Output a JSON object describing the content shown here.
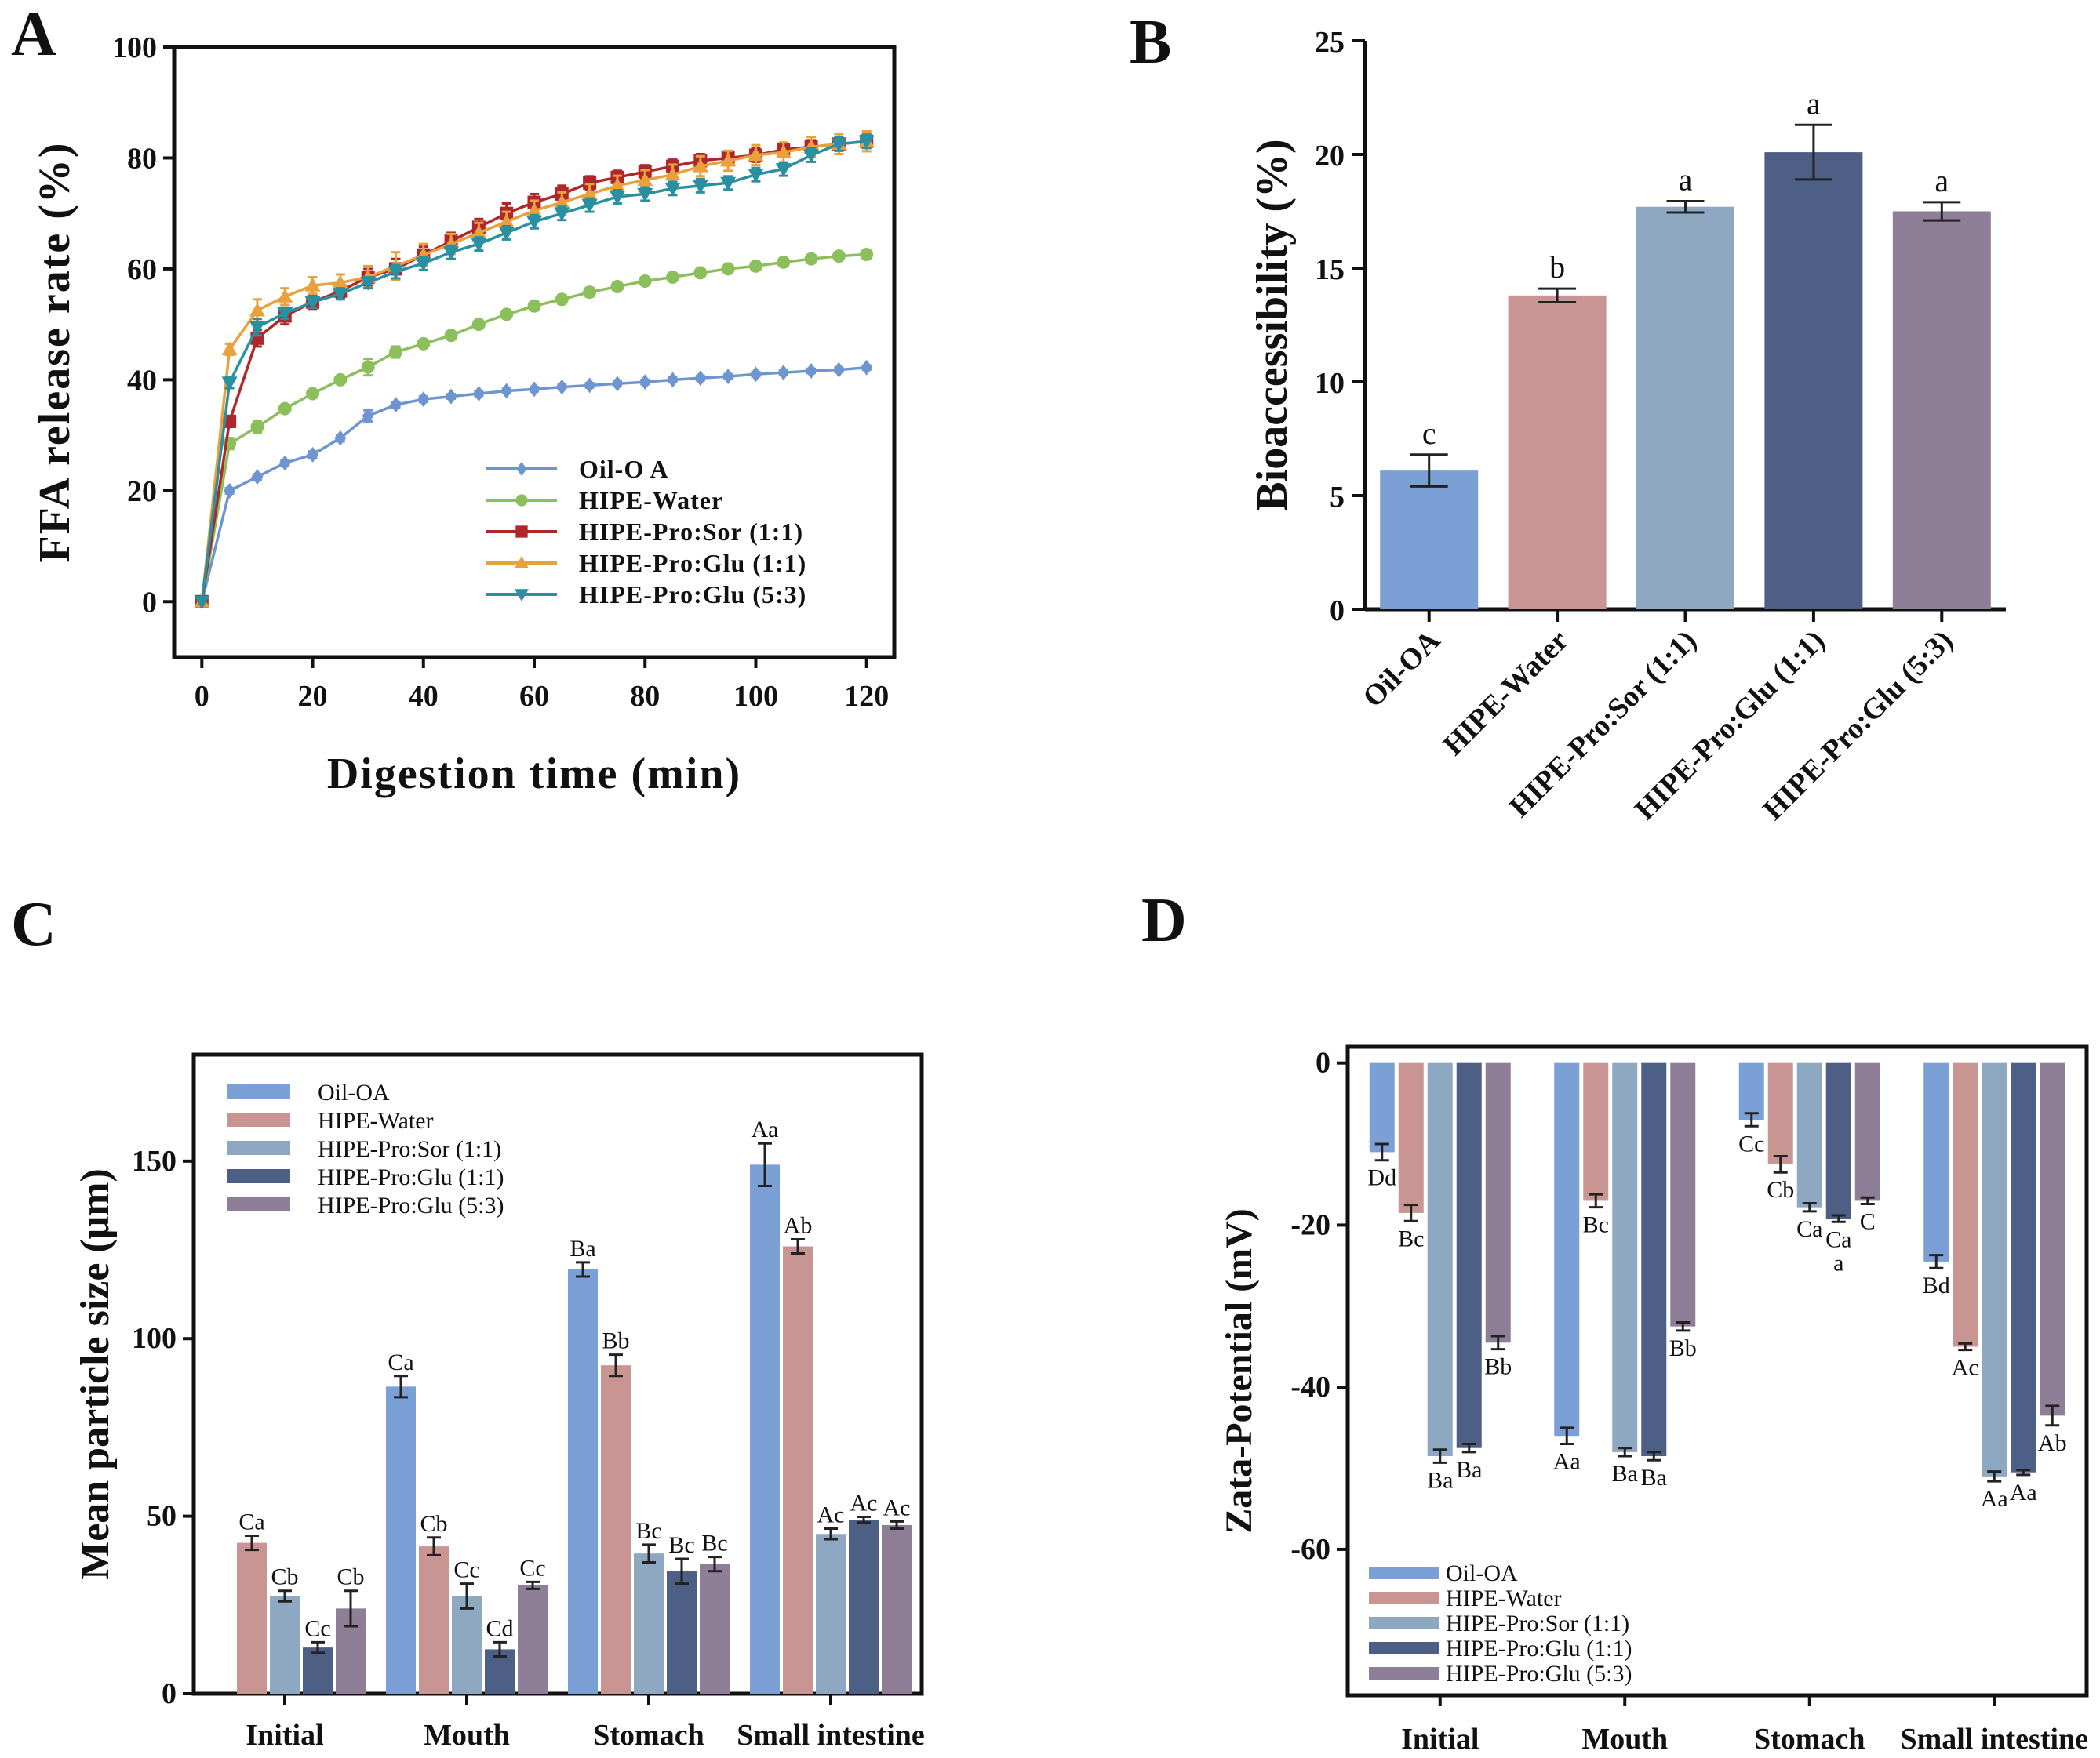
{
  "series_names": [
    "Oil-OA",
    "HIPE-Water",
    "HIPE-Pro:Sor (1:1)",
    "HIPE-Pro:Glu (1:1)",
    "HIPE-Pro:Glu (5:3)"
  ],
  "colors": [
    "#7aa0d6",
    "#c99592",
    "#8ea8c2",
    "#4e5f86",
    "#8e7e98"
  ],
  "line_colors": [
    "#6f95d0",
    "#8cbf5c",
    "#b0272b",
    "#e8a13d",
    "#2a8fa0"
  ],
  "chart_data": [
    {
      "panel": "A",
      "type": "line",
      "xlabel": "Digestion time (min)",
      "ylabel": "FFA release rate  (%)",
      "xlim": [
        -5,
        125
      ],
      "ylim": [
        -10,
        100
      ],
      "xticks": [
        "0",
        "20",
        "40",
        "60",
        "80",
        "100",
        "120"
      ],
      "yticks": [
        "0",
        "20",
        "40",
        "60",
        "80",
        "100"
      ],
      "legend": [
        "Oil-O A",
        "HIPE-Water",
        "HIPE-Pro:Sor (1:1)",
        "HIPE-Pro:Glu (1:1)",
        "HIPE-Pro:Glu (5:3)"
      ],
      "x": [
        0,
        5,
        10,
        15,
        20,
        25,
        30,
        35,
        40,
        45,
        50,
        55,
        60,
        65,
        70,
        75,
        80,
        85,
        90,
        95,
        100,
        105,
        110,
        115,
        120
      ],
      "series": [
        {
          "name": "Oil-O A",
          "marker": "diamond",
          "values": [
            0,
            20,
            22.5,
            25,
            26.5,
            29.5,
            33.5,
            35.5,
            36.5,
            37,
            37.5,
            38,
            38.3,
            38.7,
            39,
            39.3,
            39.6,
            40,
            40.3,
            40.6,
            41,
            41.3,
            41.6,
            41.8,
            42.2
          ],
          "err": [
            0,
            0.5,
            0.5,
            0.5,
            0.6,
            0.6,
            1.0,
            0.5,
            0.5,
            0.4,
            0.4,
            0.4,
            0.4,
            0.4,
            0.4,
            0.4,
            0.4,
            0.4,
            0.4,
            0.4,
            0.4,
            0.4,
            0.4,
            0.4,
            0.4
          ]
        },
        {
          "name": "HIPE-Water",
          "marker": "circle",
          "values": [
            0,
            28.5,
            31.5,
            34.8,
            37.5,
            40,
            42.3,
            45,
            46.5,
            48,
            50,
            51.8,
            53.3,
            54.5,
            55.8,
            56.8,
            57.8,
            58.5,
            59.3,
            60,
            60.5,
            61.2,
            61.8,
            62.3,
            62.6
          ],
          "err": [
            0,
            1.0,
            1.0,
            0.6,
            0.6,
            0.6,
            1.5,
            1.0,
            0.6,
            0.6,
            0.6,
            0.6,
            0.8,
            0.8,
            0.8,
            0.6,
            0.6,
            0.6,
            0.6,
            0.6,
            0.6,
            0.6,
            0.6,
            0.6,
            0.8
          ]
        },
        {
          "name": "HIPE-Pro:Sor (1:1)",
          "marker": "square",
          "values": [
            0,
            32.5,
            47.5,
            51.5,
            54,
            56,
            58.5,
            60,
            62.5,
            65,
            67.5,
            70,
            72,
            73.5,
            75.5,
            76.5,
            77.5,
            78.5,
            79.5,
            80,
            80.5,
            81.5,
            82,
            82.5,
            83
          ],
          "err": [
            0,
            1.0,
            1.5,
            1.5,
            1.2,
            1.2,
            1.5,
            1.8,
            1.5,
            1.5,
            1.5,
            1.8,
            1.5,
            1.5,
            1.2,
            1.2,
            1.2,
            1.2,
            1.2,
            1.2,
            1.2,
            1.2,
            1.2,
            1.2,
            1.2
          ]
        },
        {
          "name": "HIPE-Pro:Glu (1:1)",
          "marker": "triangle",
          "values": [
            0,
            45.5,
            52.5,
            55,
            57,
            57.5,
            58.5,
            60.5,
            62.5,
            64.5,
            66.5,
            68.5,
            70.5,
            72,
            73.5,
            75,
            76,
            77,
            78.5,
            79.5,
            80.5,
            81,
            82,
            82.5,
            83
          ],
          "err": [
            0,
            1.0,
            2.0,
            1.5,
            1.5,
            1.5,
            2.0,
            2.5,
            2.0,
            1.8,
            1.8,
            1.8,
            1.8,
            1.8,
            1.8,
            1.8,
            1.8,
            1.8,
            1.8,
            1.8,
            1.8,
            1.8,
            1.8,
            1.8,
            1.8
          ]
        },
        {
          "name": "HIPE-Pro:Glu (5:3)",
          "marker": "tri-down",
          "values": [
            0,
            39.5,
            49.5,
            52,
            54,
            55.5,
            57.5,
            59.5,
            61,
            63,
            64.5,
            66.5,
            68.5,
            70,
            71.5,
            73,
            73.5,
            74.5,
            75,
            75.5,
            77,
            78,
            80.5,
            82.5,
            83
          ],
          "err": [
            0,
            1.0,
            1.5,
            1.0,
            1.0,
            1.0,
            1.0,
            1.2,
            1.2,
            1.2,
            1.2,
            1.2,
            1.2,
            1.2,
            1.2,
            1.2,
            1.2,
            1.2,
            1.2,
            1.2,
            1.2,
            1.2,
            1.2,
            1.2,
            1.2
          ]
        }
      ]
    },
    {
      "panel": "B",
      "type": "bar",
      "ylabel": "Bioaccessibility (%)",
      "ylim": [
        0,
        25
      ],
      "yticks": [
        "0",
        "5",
        "10",
        "15",
        "20",
        "25"
      ],
      "categories": [
        "Oil-OA",
        "HIPE-Water",
        "HIPE-Pro:Sor (1:1)",
        "HIPE-Pro:Glu (1:1)",
        "HIPE-Pro:Glu (5:3)"
      ],
      "values": [
        6.1,
        13.8,
        17.7,
        20.1,
        17.5
      ],
      "err": [
        0.7,
        0.3,
        0.25,
        1.2,
        0.4
      ],
      "letters": [
        "c",
        "b",
        "a",
        "a",
        "a"
      ]
    },
    {
      "panel": "C",
      "type": "bar",
      "ylabel": "Mean particle size (μm)",
      "ylim": [
        0,
        180
      ],
      "yticks": [
        "0",
        "50",
        "100",
        "150"
      ],
      "categories": [
        "Initial",
        "Mouth",
        "Stomach",
        "Small intestine"
      ],
      "series": [
        {
          "name": "Oil-OA",
          "values": [
            null,
            86.5,
            119.5,
            149
          ],
          "err": [
            null,
            3,
            2,
            6
          ],
          "labels": [
            "",
            "Ca",
            "Ba",
            "Aa"
          ]
        },
        {
          "name": "HIPE-Water",
          "values": [
            42.5,
            41.5,
            92.5,
            126
          ],
          "err": [
            2,
            2.5,
            3,
            2
          ],
          "labels": [
            "Ca",
            "Cb",
            "Bb",
            "Ab"
          ]
        },
        {
          "name": "HIPE-Pro:Sor (1:1)",
          "values": [
            27.5,
            27.5,
            39.5,
            45
          ],
          "err": [
            1.5,
            3.5,
            2.5,
            1.5
          ],
          "labels": [
            "Cb",
            "Cc",
            "Bc",
            "Ac"
          ]
        },
        {
          "name": "HIPE-Pro:Glu (1:1)",
          "values": [
            13,
            12.5,
            34.5,
            49
          ],
          "err": [
            1.5,
            2,
            3.5,
            0.8
          ],
          "labels": [
            "Cc",
            "Cd",
            "Bc",
            "Ac"
          ]
        },
        {
          "name": "HIPE-Pro:Glu (5:3)",
          "values": [
            24,
            30.5,
            36.5,
            47.5
          ],
          "err": [
            5,
            1,
            2,
            1
          ],
          "labels": [
            "Cb",
            "Cc",
            "Bc",
            "Ac"
          ]
        }
      ]
    },
    {
      "panel": "D",
      "type": "bar",
      "ylabel": "Zata-Potential (mV)",
      "ylim": [
        -78,
        2
      ],
      "yticks": [
        "0",
        "-20",
        "-40",
        "-60"
      ],
      "categories": [
        "Initial",
        "Mouth",
        "Stomach",
        "Small intestine"
      ],
      "series": [
        {
          "name": "Oil-OA",
          "values": [
            -11,
            -46,
            -7,
            -24.5
          ],
          "err": [
            1,
            1,
            0.8,
            0.8
          ],
          "labels": [
            "Dd",
            "Aa",
            "Cc",
            "Bd"
          ]
        },
        {
          "name": "HIPE-Water",
          "values": [
            -18.5,
            -17,
            -12.5,
            -35
          ],
          "err": [
            1,
            0.8,
            1,
            0.4
          ],
          "labels": [
            "Bc",
            "Bc",
            "Cb",
            "Ac"
          ]
        },
        {
          "name": "HIPE-Pro:Sor (1:1)",
          "values": [
            -48.5,
            -48,
            -17.8,
            -51
          ],
          "err": [
            0.8,
            0.5,
            0.5,
            0.6
          ],
          "labels": [
            "Ba",
            "Ba",
            "Ca",
            "Aa"
          ]
        },
        {
          "name": "HIPE-Pro:Glu (1:1)",
          "values": [
            -47.5,
            -48.5,
            -19.2,
            -50.5
          ],
          "err": [
            0.5,
            0.5,
            0.4,
            0.3
          ],
          "labels": [
            "Ba",
            "Ba",
            "Ca",
            "Aa"
          ]
        },
        {
          "name": "HIPE-Pro:Glu (5:3)",
          "values": [
            -34.5,
            -32.5,
            -17,
            -43.5
          ],
          "err": [
            0.8,
            0.5,
            0.4,
            1.2
          ],
          "labels": [
            "Bb",
            "Bb",
            "C",
            "Ab"
          ]
        }
      ],
      "extra_label": "a"
    }
  ],
  "panel_labels": [
    "A",
    "B",
    "C",
    "D"
  ]
}
